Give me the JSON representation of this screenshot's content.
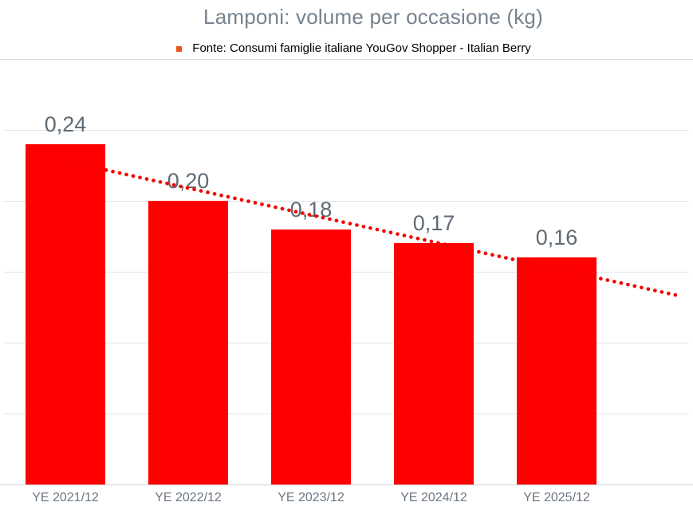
{
  "header": {
    "title": "Lamponi: volume per occasione (kg)",
    "source_label": "Fonte: Consumi famiglie italiane YouGov Shopper - Italian Berry"
  },
  "chart_data": {
    "type": "bar",
    "title": "Lamponi: volume per occasione (kg)",
    "subtitle": "Fonte: Consumi famiglie italiane YouGov Shopper - Italian Berry",
    "categories": [
      "YE 2021/12",
      "YE 2022/12",
      "YE 2023/12",
      "YE 2024/12",
      "YE 2025/12"
    ],
    "values": [
      0.24,
      0.2,
      0.18,
      0.17,
      0.16
    ],
    "value_labels": [
      "0,24",
      "0,20",
      "0,18",
      "0,17",
      "0,16"
    ],
    "xlabel": "",
    "ylabel": "",
    "ylim": [
      0,
      0.25
    ],
    "grid_step": 0.05,
    "grid": true,
    "y_tick_labels_visible": false,
    "legend_position": "none",
    "decimal_separator": ",",
    "trendline": {
      "type": "linear",
      "style": "dotted"
    }
  },
  "theme": {
    "bar_color": "#FF0000",
    "trend_color": "#F40000",
    "bullet_color": "#E8551C",
    "title_color": "#76828E",
    "data_label_color": "#5F6A74",
    "axis_label_color": "#6A7681",
    "gridline_color": "#E1E3E5",
    "axis_line_color": "#CFD2D4",
    "separator_color": "#D6DDE3"
  }
}
